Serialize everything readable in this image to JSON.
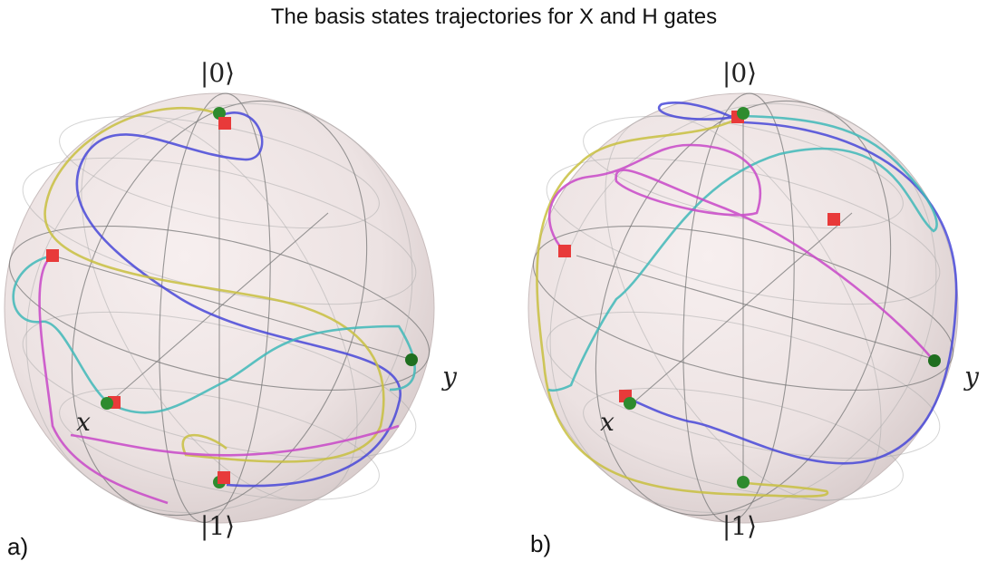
{
  "title": "The basis states trajectories for X and H gates",
  "panels": [
    {
      "label": "a)",
      "axes": {
        "top": "|0⟩",
        "bottom": "|1⟩",
        "x": "x",
        "y": "y"
      }
    },
    {
      "label": "b)",
      "axes": {
        "top": "|0⟩",
        "bottom": "|1⟩",
        "x": "x",
        "y": "y"
      }
    }
  ]
}
